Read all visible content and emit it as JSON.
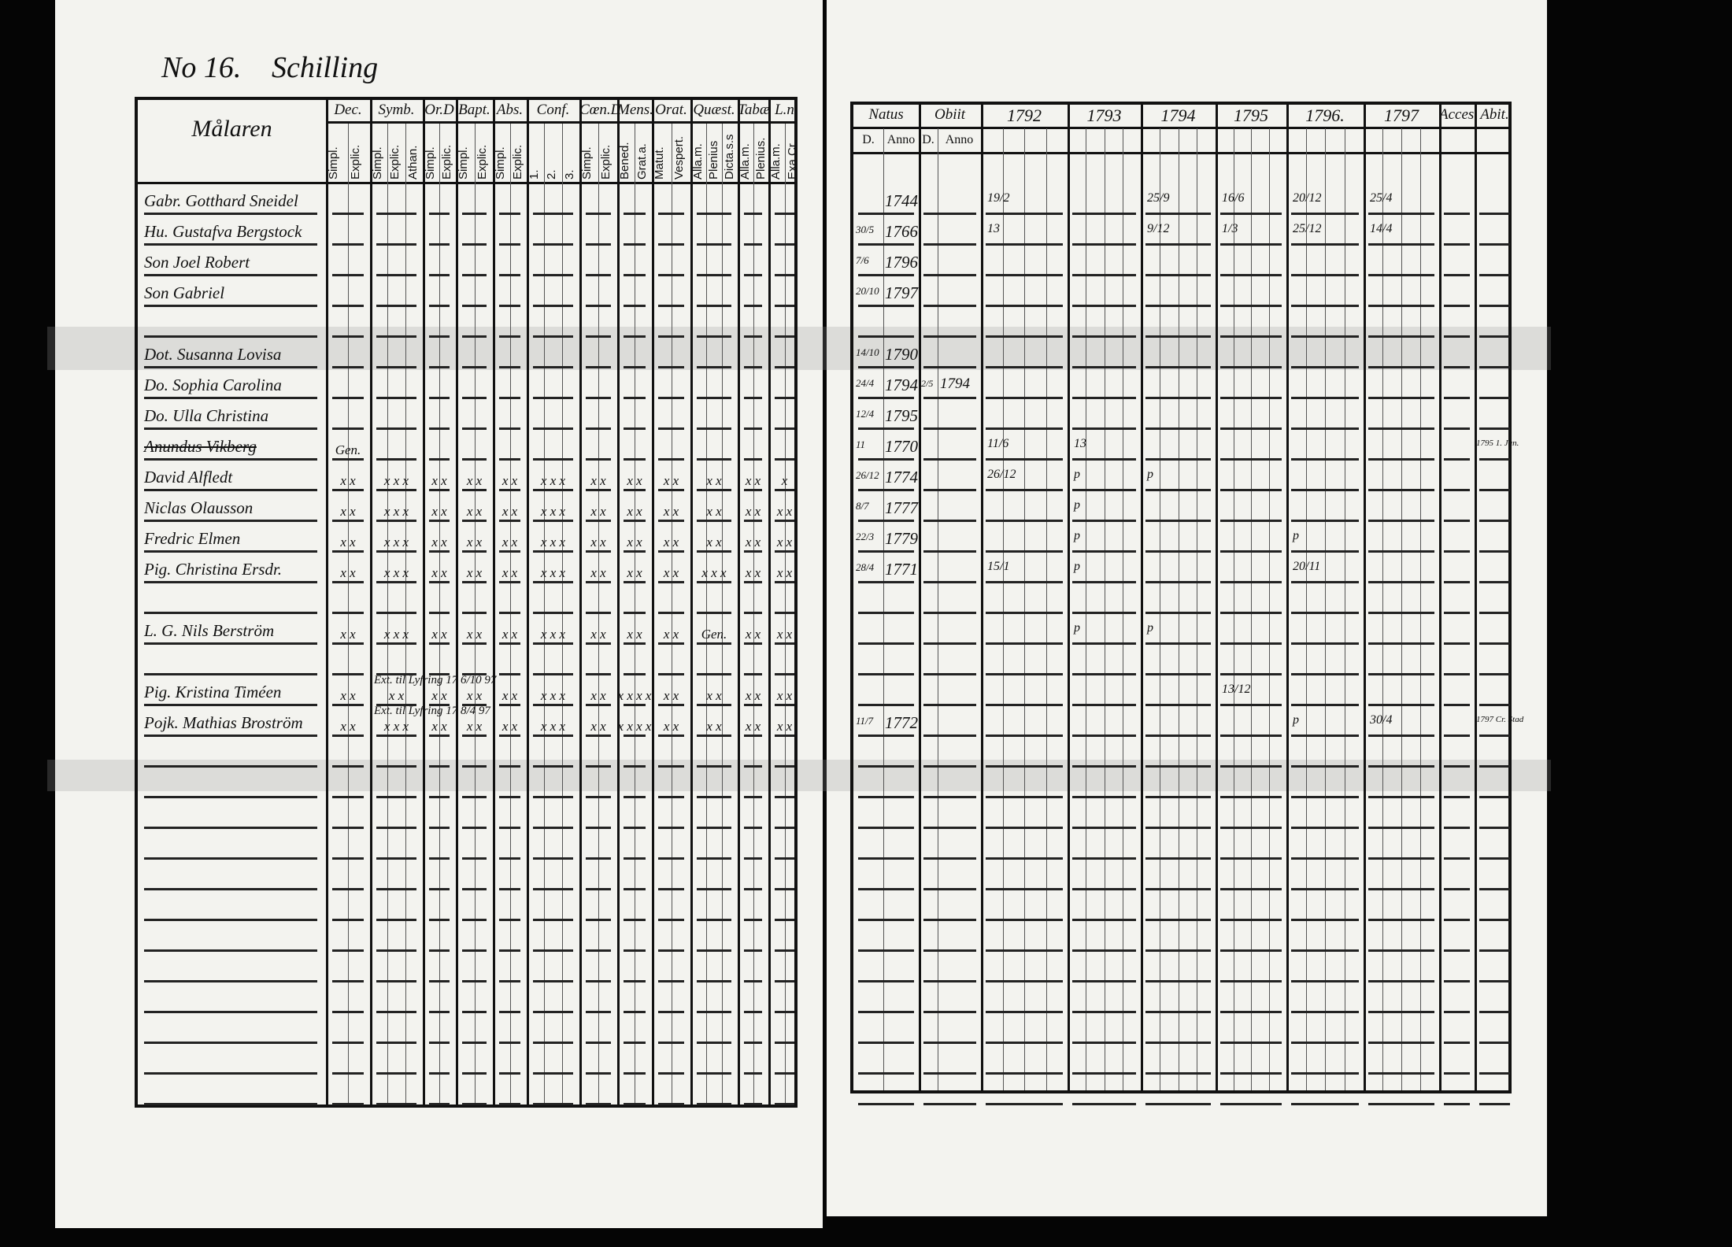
{
  "header": {
    "number": "No 16.",
    "surname": "Schilling"
  },
  "left_table": {
    "name_header": "Målaren",
    "columns": [
      {
        "label": "Dec.",
        "sub": [
          "Simpl.",
          "Explic."
        ]
      },
      {
        "label": "Symb.",
        "sub": [
          "Simpl.",
          "Explic.",
          "Athan."
        ]
      },
      {
        "label": "Or.D",
        "sub": [
          "Simpl.",
          "Explic."
        ]
      },
      {
        "label": "Bapt.",
        "sub": [
          "Simpl.",
          "Explic."
        ]
      },
      {
        "label": "Abs.",
        "sub": [
          "Simpl.",
          "Explic."
        ]
      },
      {
        "label": "Conf.",
        "sub": [
          "1.",
          "2.",
          "3."
        ]
      },
      {
        "label": "Cœn.D",
        "sub": [
          "Simpl.",
          "Explic."
        ]
      },
      {
        "label": "Mens.",
        "sub": [
          "Bened.",
          "Grat.a."
        ]
      },
      {
        "label": "Orat.",
        "sub": [
          "Matut.",
          "Vespert."
        ]
      },
      {
        "label": "Quæst.",
        "sub": [
          "Alla.m.",
          "Plenius",
          "Dicta.s.s"
        ]
      },
      {
        "label": "Tabæ",
        "sub": [
          "Alla.m.",
          "Plenius."
        ]
      },
      {
        "label": "L.n",
        "sub": [
          "Alla.m.",
          "Exa.Cr."
        ]
      }
    ]
  },
  "right_table": {
    "natus": {
      "label": "Natus",
      "sub": [
        "D.",
        "Anno"
      ]
    },
    "obiit": {
      "label": "Obiit",
      "sub": [
        "D.",
        "Anno"
      ]
    },
    "years": [
      "1792",
      "1793",
      "1794",
      "1795",
      "1796.",
      "1797"
    ],
    "acces": "Acces.",
    "abit": "Abit."
  },
  "rows": [
    {
      "name": "Gabr. Gotthard Sneidel",
      "natus_d": "",
      "natus_anno": "1744",
      "y1792": "19/2",
      "y1794": "25/9",
      "y1795": "16/6",
      "y1796": "20/12",
      "y1797": "25/4"
    },
    {
      "name": "Hu. Gustafva Bergstock",
      "natus_d": "30/5",
      "natus_anno": "1766",
      "y1792": "13",
      "y1794": "9/12",
      "y1795": "1/3",
      "y1796": "25/12",
      "y1797": "14/4"
    },
    {
      "name": "Son Joel Robert",
      "natus_d": "7/6",
      "natus_anno": "1796"
    },
    {
      "name": "Son Gabriel",
      "natus_d": "20/10",
      "natus_anno": "1797"
    },
    {
      "name": ""
    },
    {
      "name": "Dot. Susanna Lovisa",
      "natus_d": "14/10",
      "natus_anno": "1790"
    },
    {
      "name": "Do. Sophia Carolina",
      "natus_d": "24/4",
      "natus_anno": "1794",
      "obiit_d": "2/5",
      "obiit_anno": "1794"
    },
    {
      "name": "Do. Ulla Christina",
      "natus_d": "12/4",
      "natus_anno": "1795"
    },
    {
      "name": "Anundus Vikberg",
      "struck": true,
      "marks": [
        "Gen."
      ],
      "natus_d": "11",
      "natus_anno": "1770",
      "y1792": "11/6",
      "y1793": "13",
      "abit": "1795 1. Jun."
    },
    {
      "name": "David Alfledt",
      "marks": [
        "x x",
        "x x x",
        "x x",
        "x x",
        "x x",
        "x x x",
        "x x",
        "x x",
        "x x",
        "x x",
        "x x",
        "x"
      ],
      "natus_d": "26/12",
      "natus_anno": "1774",
      "y1792": "26/12",
      "y1793": "p",
      "y1794": "p"
    },
    {
      "name": "Niclas Olausson",
      "marks": [
        "x x",
        "x x x",
        "x x",
        "x x",
        "x x",
        "x x x",
        "x x",
        "x x",
        "x x",
        "x x",
        "x x",
        "x x"
      ],
      "natus_d": "8/7",
      "natus_anno": "1777",
      "y1793": "p"
    },
    {
      "name": "Fredric Elmen",
      "marks": [
        "x x",
        "x x x",
        "x x",
        "x x",
        "x x",
        "x x x",
        "x x",
        "x x",
        "x x",
        "x x",
        "x x",
        "x x"
      ],
      "natus_d": "22/3",
      "natus_anno": "1779",
      "y1793": "p",
      "y1796": "p"
    },
    {
      "name": "Pig. Christina Ersdr.",
      "marks": [
        "x x",
        "x x x",
        "x x",
        "x x",
        "x x",
        "x x x",
        "x x",
        "x x",
        "x x",
        "x x x",
        "x x",
        "x x"
      ],
      "natus_d": "28/4",
      "natus_anno": "1771",
      "y1792": "15/1",
      "y1793": "p",
      "y1796": "20/11"
    },
    {
      "name": ""
    },
    {
      "name": "L. G. Nils Berström",
      "marks": [
        "x x",
        "x x x",
        "x x",
        "x x",
        "x x",
        "x x x",
        "x x",
        "x x",
        "x x",
        "Gen.",
        "x x",
        "x x"
      ],
      "y1793": "p",
      "y1794": "p"
    },
    {
      "name": ""
    },
    {
      "name": "Pig. Kristina Timéen",
      "note": "Ext. til Lyfring 17 6/10 97",
      "marks": [
        "x x",
        "x x",
        "x x",
        "x x",
        "x x",
        "x x x",
        "x x",
        "x x x x",
        "x x",
        "x x",
        "x x",
        "x x"
      ],
      "y1795": "13/12"
    },
    {
      "name": "Pojk. Mathias Broström",
      "note": "Ext. til Lyfring 17 8/4 97",
      "marks": [
        "x x",
        "x x x",
        "x x",
        "x x",
        "x x",
        "x x x",
        "x x",
        "x x x x",
        "x x",
        "x x",
        "x x",
        "x x"
      ],
      "natus_d": "11/7",
      "natus_anno": "1772",
      "y1796": "p",
      "y1797": "30/4",
      "abit": "1797 Cr. Stad"
    }
  ]
}
